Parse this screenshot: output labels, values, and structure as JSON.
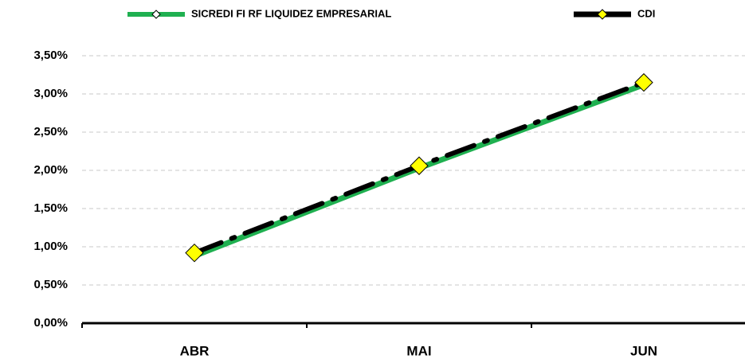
{
  "chart_data": {
    "type": "line",
    "categories": [
      "ABR",
      "MAI",
      "JUN"
    ],
    "series": [
      {
        "name": "SICREDI FI RF LIQUIDEZ EMPRESARIAL",
        "color": "#1fb050",
        "values": [
          0.88,
          2.03,
          3.12
        ]
      },
      {
        "name": "CDI",
        "color": "#000000",
        "marker_color": "#ffff00",
        "values": [
          0.92,
          2.06,
          3.15
        ]
      }
    ],
    "ylim": [
      0,
      3.5
    ],
    "yticks": [
      {
        "value": 0,
        "label": "0,00%"
      },
      {
        "value": 0.5,
        "label": "0,50%"
      },
      {
        "value": 1,
        "label": "1,00%"
      },
      {
        "value": 1.5,
        "label": "1,50%"
      },
      {
        "value": 2,
        "label": "2,00%"
      },
      {
        "value": 2.5,
        "label": "2,50%"
      },
      {
        "value": 3,
        "label": "3,00%"
      },
      {
        "value": 3.5,
        "label": "3,50%"
      }
    ],
    "grid": true,
    "legend": "top"
  }
}
